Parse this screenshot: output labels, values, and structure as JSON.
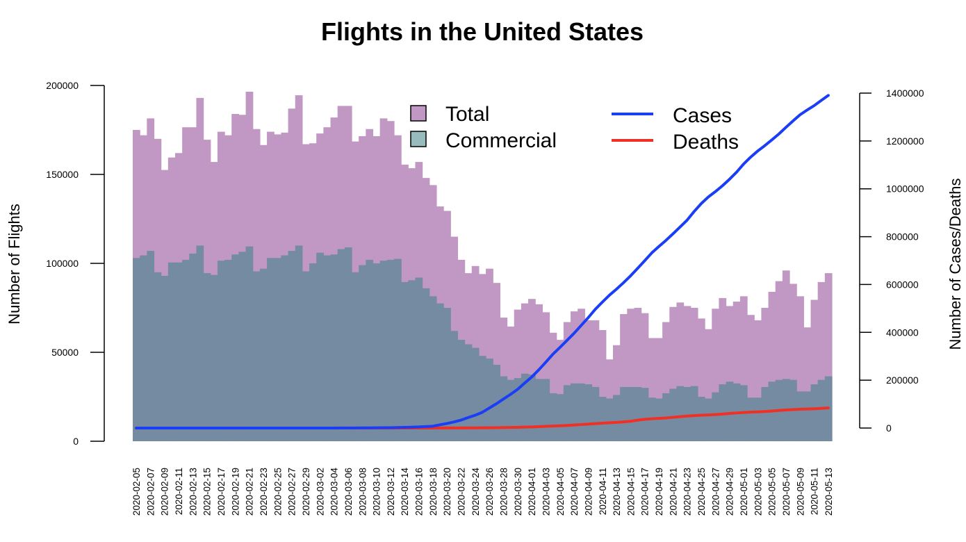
{
  "colors": {
    "total": "#c198c4",
    "commercial": "#758ba1",
    "commercial_legend": "#98bbbd",
    "cases": "#1a3ef5",
    "deaths": "#f03024"
  },
  "chart_data": {
    "type": "bar",
    "title": "Flights in the United States",
    "ylabel": "Number of Flights",
    "ylabel_right": "Number of Cases/Deaths",
    "xlabel": "",
    "ylim": [
      0,
      200000
    ],
    "ylim_right": [
      0,
      1400000
    ],
    "yticks": [
      "0",
      "50000",
      "100000",
      "150000",
      "200000"
    ],
    "yticks_right": [
      "0",
      "200000",
      "400000",
      "600000",
      "800000",
      "1000000",
      "1200000",
      "1400000"
    ],
    "grid": false,
    "legend_placement": "top",
    "dates": [
      "2020-02-05",
      "2020-02-06",
      "2020-02-07",
      "2020-02-08",
      "2020-02-09",
      "2020-02-10",
      "2020-02-11",
      "2020-02-12",
      "2020-02-13",
      "2020-02-14",
      "2020-02-15",
      "2020-02-16",
      "2020-02-17",
      "2020-02-18",
      "2020-02-19",
      "2020-02-20",
      "2020-02-21",
      "2020-02-22",
      "2020-02-23",
      "2020-02-24",
      "2020-02-25",
      "2020-02-26",
      "2020-02-27",
      "2020-02-28",
      "2020-02-29",
      "2020-03-01",
      "2020-03-02",
      "2020-03-03",
      "2020-03-04",
      "2020-03-05",
      "2020-03-06",
      "2020-03-07",
      "2020-03-08",
      "2020-03-09",
      "2020-03-10",
      "2020-03-11",
      "2020-03-12",
      "2020-03-13",
      "2020-03-14",
      "2020-03-15",
      "2020-03-16",
      "2020-03-17",
      "2020-03-18",
      "2020-03-19",
      "2020-03-20",
      "2020-03-21",
      "2020-03-22",
      "2020-03-23",
      "2020-03-24",
      "2020-03-25",
      "2020-03-26",
      "2020-03-27",
      "2020-03-28",
      "2020-03-29",
      "2020-03-30",
      "2020-03-31",
      "2020-04-01",
      "2020-04-02",
      "2020-04-03",
      "2020-04-04",
      "2020-04-05",
      "2020-04-06",
      "2020-04-07",
      "2020-04-08",
      "2020-04-09",
      "2020-04-10",
      "2020-04-11",
      "2020-04-12",
      "2020-04-13",
      "2020-04-14",
      "2020-04-15",
      "2020-04-16",
      "2020-04-17",
      "2020-04-18",
      "2020-04-19",
      "2020-04-20",
      "2020-04-21",
      "2020-04-22",
      "2020-04-23",
      "2020-04-24",
      "2020-04-25",
      "2020-04-26",
      "2020-04-27",
      "2020-04-28",
      "2020-04-29",
      "2020-04-30",
      "2020-05-01",
      "2020-05-02",
      "2020-05-03",
      "2020-05-04",
      "2020-05-05",
      "2020-05-06",
      "2020-05-07",
      "2020-05-08",
      "2020-05-09",
      "2020-05-10",
      "2020-05-11",
      "2020-05-12",
      "2020-05-13"
    ],
    "xtick_labels": [
      "2020-02-05",
      "2020-02-07",
      "2020-02-09",
      "2020-02-11",
      "2020-02-13",
      "2020-02-15",
      "2020-02-17",
      "2020-02-19",
      "2020-02-21",
      "2020-02-23",
      "2020-02-25",
      "2020-02-27",
      "2020-02-29",
      "2020-03-02",
      "2020-03-04",
      "2020-03-06",
      "2020-03-08",
      "2020-03-10",
      "2020-03-12",
      "2020-03-14",
      "2020-03-16",
      "2020-03-18",
      "2020-03-20",
      "2020-03-22",
      "2020-03-24",
      "2020-03-26",
      "2020-03-28",
      "2020-03-30",
      "2020-04-01",
      "2020-04-03",
      "2020-04-05",
      "2020-04-07",
      "2020-04-09",
      "2020-04-11",
      "2020-04-13",
      "2020-04-15",
      "2020-04-17",
      "2020-04-19",
      "2020-04-21",
      "2020-04-23",
      "2020-04-25",
      "2020-04-27",
      "2020-04-29",
      "2020-05-01",
      "2020-05-03",
      "2020-05-05",
      "2020-05-07",
      "2020-05-09",
      "2020-05-11",
      "2020-05-13"
    ],
    "series": [
      {
        "name": "Total",
        "kind": "bar",
        "axis": "left",
        "values": [
          175000,
          172000,
          181500,
          170000,
          152500,
          159500,
          162000,
          176500,
          176500,
          193000,
          169500,
          157000,
          174000,
          172000,
          184000,
          183500,
          196500,
          175500,
          166500,
          174000,
          172500,
          173500,
          187000,
          194500,
          167000,
          167500,
          173000,
          176500,
          182000,
          188500,
          188500,
          168500,
          171500,
          175500,
          171500,
          181500,
          180000,
          172000,
          155500,
          153500,
          157000,
          148000,
          144000,
          132000,
          129500,
          115000,
          102000,
          94500,
          98500,
          94000,
          97000,
          89000,
          69500,
          64500,
          74000,
          77500,
          80000,
          77000,
          72500,
          61000,
          57000,
          67000,
          73000,
          74500,
          68000,
          68000,
          62500,
          46000,
          54000,
          71500,
          74500,
          75000,
          72000,
          58000,
          58000,
          67000,
          75500,
          78000,
          76000,
          75000,
          69000,
          63000,
          74500,
          80500,
          76000,
          78500,
          81500,
          71000,
          68000,
          75000,
          84000,
          90000,
          96000,
          88500,
          81500,
          64000,
          79500,
          89500,
          94500
        ]
      },
      {
        "name": "Commercial",
        "kind": "bar",
        "axis": "left",
        "values": [
          103000,
          104500,
          107000,
          95000,
          93000,
          100500,
          100500,
          102000,
          105500,
          110000,
          94500,
          93500,
          101500,
          102000,
          105000,
          106500,
          109500,
          95500,
          97000,
          103000,
          103000,
          104500,
          107000,
          110000,
          95500,
          100000,
          106000,
          104500,
          105000,
          108000,
          109000,
          95000,
          99000,
          102000,
          100000,
          101500,
          102000,
          102500,
          89500,
          90500,
          92000,
          86000,
          81500,
          77500,
          75000,
          62000,
          57000,
          54500,
          52500,
          48000,
          46500,
          43000,
          36500,
          34500,
          35500,
          38000,
          37500,
          35000,
          35000,
          27000,
          26500,
          31500,
          32500,
          32500,
          32000,
          30500,
          25000,
          24000,
          26000,
          30500,
          30500,
          30500,
          30000,
          24500,
          24000,
          27000,
          29500,
          31000,
          30500,
          31000,
          25000,
          24000,
          27500,
          32000,
          33500,
          32500,
          31500,
          24500,
          24500,
          30500,
          33500,
          34500,
          35000,
          34500,
          28000,
          28000,
          32000,
          34500,
          36500
        ]
      },
      {
        "name": "Cases",
        "kind": "line",
        "axis": "right",
        "values": [
          11,
          12,
          12,
          12,
          12,
          12,
          13,
          13,
          15,
          15,
          15,
          15,
          15,
          15,
          15,
          15,
          35,
          35,
          35,
          53,
          53,
          57,
          60,
          62,
          68,
          75,
          100,
          124,
          158,
          221,
          319,
          435,
          541,
          704,
          994,
          1301,
          1630,
          2183,
          2770,
          3613,
          4596,
          6344,
          7786,
          13680,
          19101,
          25493,
          33276,
          43843,
          53740,
          65778,
          83836,
          101657,
          121478,
          140886,
          161807,
          188172,
          213372,
          243453,
          275586,
          308850,
          337072,
          366614,
          396223,
          429052,
          461437,
          496535,
          526396,
          555313,
          580619,
          607670,
          636350,
          667592,
          699706,
          732197,
          758809,
          784326,
          811865,
          840351,
          869172,
          905358,
          938154,
          965783,
          988197,
          1012582,
          1039909,
          1069424,
          1103461,
          1132539,
          1158040,
          1180375,
          1204351,
          1229331,
          1257023,
          1283929,
          1309550,
          1329260,
          1347881,
          1369376,
          1390406
        ]
      },
      {
        "name": "Deaths",
        "kind": "line",
        "axis": "right",
        "values": [
          0,
          0,
          0,
          0,
          0,
          0,
          0,
          0,
          0,
          0,
          0,
          0,
          0,
          0,
          0,
          0,
          0,
          0,
          0,
          0,
          0,
          0,
          0,
          0,
          1,
          1,
          6,
          9,
          11,
          12,
          15,
          19,
          22,
          26,
          30,
          38,
          41,
          48,
          57,
          69,
          87,
          110,
          150,
          207,
          256,
          302,
          413,
          553,
          706,
          942,
          1209,
          1581,
          2026,
          2467,
          2978,
          3873,
          4757,
          5926,
          7087,
          8407,
          9619,
          10783,
          12722,
          14695,
          16478,
          18586,
          20463,
          22020,
          23529,
          25832,
          28325,
          32916,
          36773,
          38664,
          40661,
          42094,
          44845,
          47659,
          49954,
          51949,
          53755,
          54881,
          56259,
          58355,
          60967,
          62996,
          64943,
          66369,
          67682,
          68922,
          71064,
          73431,
          75662,
          77180,
          78795,
          79526,
          80682,
          82376,
          84119
        ]
      }
    ]
  }
}
